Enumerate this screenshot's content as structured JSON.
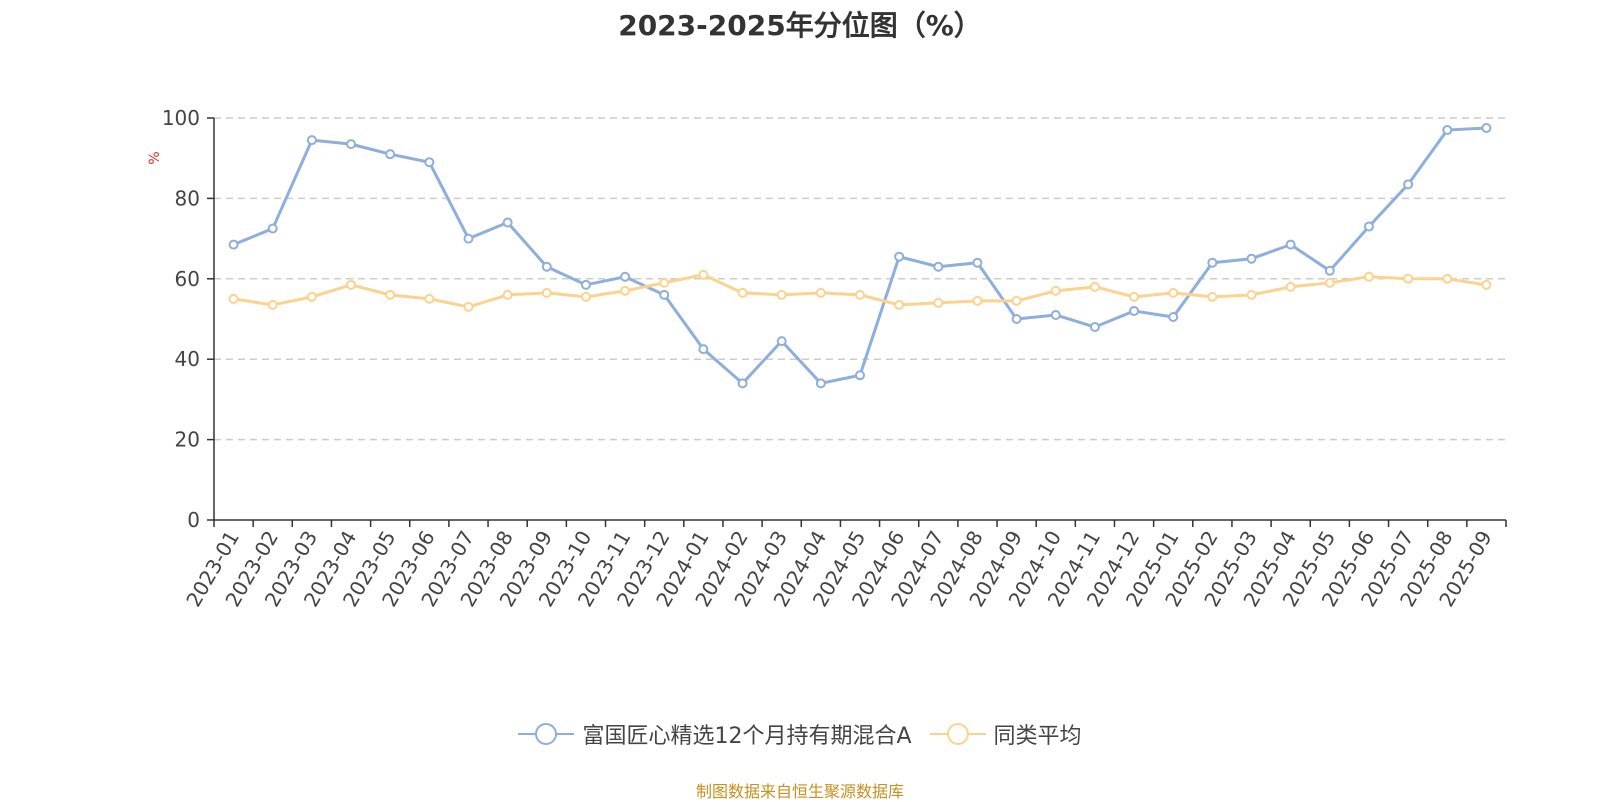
{
  "chart_data": {
    "type": "line",
    "title": "2023-2025年分位图（%）",
    "xlabel": "",
    "ylabel": "%",
    "ylim": [
      0,
      100
    ],
    "yticks": [
      0,
      20,
      40,
      60,
      80,
      100
    ],
    "grid": true,
    "legend_position": "bottom",
    "categories": [
      "2023-01",
      "2023-02",
      "2023-03",
      "2023-04",
      "2023-05",
      "2023-06",
      "2023-07",
      "2023-08",
      "2023-09",
      "2023-10",
      "2023-11",
      "2023-12",
      "2024-01",
      "2024-02",
      "2024-03",
      "2024-04",
      "2024-05",
      "2024-06",
      "2024-07",
      "2024-08",
      "2024-09",
      "2024-10",
      "2024-11",
      "2024-12",
      "2025-01",
      "2025-02",
      "2025-03",
      "2025-04",
      "2025-05",
      "2025-06",
      "2025-07",
      "2025-08",
      "2025-09"
    ],
    "series": [
      {
        "name": "富国匠心精选12个月持有期混合A",
        "color": "#8eaedb",
        "values": [
          68.5,
          72.5,
          94.5,
          93.5,
          91.0,
          89.0,
          70.0,
          74.0,
          63.0,
          58.5,
          60.5,
          56.0,
          42.5,
          34.0,
          44.5,
          34.0,
          36.0,
          65.5,
          63.0,
          64.0,
          50.0,
          51.0,
          48.0,
          52.0,
          50.5,
          64.0,
          65.0,
          68.5,
          62.0,
          73.0,
          83.5,
          97.0,
          97.5
        ]
      },
      {
        "name": "同类平均",
        "color": "#fbd38f",
        "values": [
          55.0,
          53.5,
          55.5,
          58.5,
          56.0,
          55.0,
          53.0,
          56.0,
          56.5,
          55.5,
          57.0,
          59.0,
          61.0,
          56.5,
          56.0,
          56.5,
          56.0,
          53.5,
          54.0,
          54.5,
          54.5,
          57.0,
          58.0,
          55.5,
          56.5,
          55.5,
          56.0,
          58.0,
          59.0,
          60.5,
          60.0,
          60.0,
          58.5
        ]
      }
    ]
  },
  "source_note": "制图数据来自恒生聚源数据库"
}
